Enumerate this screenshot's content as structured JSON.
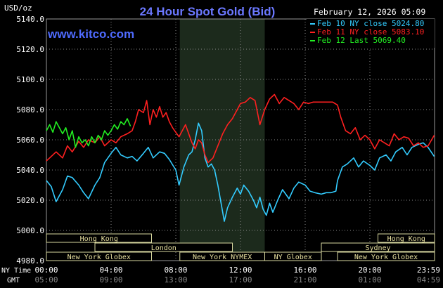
{
  "chart_data": {
    "type": "line",
    "title": "24 Hour Spot Gold (Bid)",
    "date_text": "February 12, 2026 05:09",
    "site": "www.kitco.com",
    "ylabel": "USD/oz",
    "ylim": [
      4980,
      5140
    ],
    "y_ticks": [
      "5140.0",
      "5120.0",
      "5100.0",
      "5080.0",
      "5060.0",
      "5040.0",
      "5020.0",
      "5000.0",
      "4980.0"
    ],
    "x_axis": {
      "row1_label": "NY Time",
      "row2_label": "GMT",
      "ny_ticks": [
        "00:00",
        "04:00",
        "08:00",
        "12:00",
        "16:00",
        "20:00",
        "23:59"
      ],
      "gmt_ticks": [
        "05:00",
        "09:00",
        "13:00",
        "17:00",
        "21:00",
        "01:00",
        "04:59"
      ]
    },
    "legend": [
      {
        "label": "Feb 10 NY close 5024.80",
        "color": "#33CCFF"
      },
      {
        "label": "Feb 11 NY close 5083.10",
        "color": "#FF2020"
      },
      {
        "label": "Feb 12 Last 5069.40",
        "color": "#22EE22"
      }
    ],
    "sessions": [
      {
        "label": "Hong Kong",
        "start": 0.0,
        "end": 6.5,
        "row": 0
      },
      {
        "label": "Hong Kong",
        "start": 20.5,
        "end": 24.0,
        "row": 0
      },
      {
        "label": "London",
        "start": 3.0,
        "end": 11.5,
        "row": 1
      },
      {
        "label": "Sydney",
        "start": 17.0,
        "end": 24.0,
        "row": 1
      },
      {
        "label": "New York Globex",
        "start": 0.0,
        "end": 6.5,
        "row": 2
      },
      {
        "label": "New York NYMEX",
        "start": 8.25,
        "end": 13.5,
        "row": 2
      },
      {
        "label": "NY Globex",
        "start": 13.5,
        "end": 17.0,
        "row": 2
      },
      {
        "label": "New York Globex",
        "start": 18.0,
        "end": 24.0,
        "row": 2
      }
    ],
    "shaded_region_hours": [
      8.25,
      13.5
    ],
    "series": [
      {
        "name": "Feb 10 NY close 5024.80",
        "color": "#33CCFF",
        "x": [
          0,
          0.3,
          0.6,
          1,
          1.3,
          1.6,
          2,
          2.3,
          2.6,
          3,
          3.3,
          3.6,
          4,
          4.3,
          4.6,
          5,
          5.3,
          5.6,
          6,
          6.3,
          6.6,
          7,
          7.3,
          7.6,
          8,
          8.2,
          8.5,
          8.8,
          9,
          9.2,
          9.4,
          9.6,
          9.8,
          10,
          10.2,
          10.4,
          10.6,
          10.8,
          11,
          11.2,
          11.5,
          11.8,
          12,
          12.2,
          12.5,
          12.8,
          13,
          13.2,
          13.4,
          13.6,
          13.8,
          14,
          14.3,
          14.6,
          15,
          15.3,
          15.6,
          16,
          16.3,
          16.6,
          17,
          17.3,
          17.6,
          17.9,
          18,
          18.3,
          18.6,
          19,
          19.3,
          19.6,
          20,
          20.3,
          20.6,
          21,
          21.3,
          21.6,
          22,
          22.3,
          22.6,
          23,
          23.3,
          23.6,
          23.98
        ],
        "y": [
          5033,
          5029,
          5019,
          5027,
          5036,
          5035,
          5030,
          5025,
          5021,
          5030,
          5035,
          5045,
          5051,
          5055,
          5050,
          5048,
          5049,
          5046,
          5051,
          5055,
          5048,
          5052,
          5051,
          5047,
          5040,
          5030,
          5042,
          5050,
          5052,
          5060,
          5071,
          5066,
          5048,
          5042,
          5044,
          5040,
          5030,
          5018,
          5006,
          5015,
          5022,
          5028,
          5024,
          5030,
          5026,
          5020,
          5015,
          5022,
          5014,
          5010,
          5018,
          5012,
          5020,
          5027,
          5021,
          5028,
          5032,
          5030,
          5026,
          5025,
          5024,
          5025,
          5025,
          5026,
          5033,
          5042,
          5044,
          5048,
          5042,
          5046,
          5043,
          5040,
          5048,
          5050,
          5046,
          5052,
          5055,
          5050,
          5055,
          5057,
          5058,
          5055,
          5049
        ]
      },
      {
        "name": "Feb 11 NY close 5083.10",
        "color": "#FF2020",
        "x": [
          0,
          0.3,
          0.6,
          1,
          1.3,
          1.6,
          2,
          2.3,
          2.6,
          3,
          3.3,
          3.6,
          4,
          4.3,
          4.6,
          5,
          5.3,
          5.5,
          5.7,
          6,
          6.2,
          6.4,
          6.6,
          6.8,
          7,
          7.2,
          7.4,
          7.6,
          7.8,
          8,
          8.2,
          8.4,
          8.6,
          8.8,
          9,
          9.2,
          9.4,
          9.6,
          9.8,
          10,
          10.3,
          10.6,
          10.9,
          11.2,
          11.5,
          11.8,
          12,
          12.3,
          12.6,
          12.9,
          13.2,
          13.5,
          13.8,
          14.1,
          14.4,
          14.7,
          15,
          15.3,
          15.6,
          15.9,
          16.2,
          16.5,
          16.8,
          17.1,
          17.4,
          17.7,
          18,
          18.2,
          18.5,
          18.8,
          19.1,
          19.4,
          19.7,
          20,
          20.3,
          20.6,
          20.9,
          21.2,
          21.5,
          21.8,
          22.1,
          22.4,
          22.7,
          23,
          23.3,
          23.6,
          23.98
        ],
        "y": [
          5046,
          5049,
          5052,
          5048,
          5056,
          5052,
          5059,
          5055,
          5060,
          5058,
          5062,
          5056,
          5060,
          5058,
          5062,
          5064,
          5066,
          5072,
          5080,
          5078,
          5086,
          5070,
          5080,
          5075,
          5082,
          5075,
          5078,
          5072,
          5068,
          5065,
          5062,
          5066,
          5070,
          5064,
          5058,
          5054,
          5060,
          5058,
          5050,
          5045,
          5048,
          5056,
          5064,
          5070,
          5074,
          5080,
          5084,
          5085,
          5088,
          5086,
          5070,
          5080,
          5087,
          5090,
          5084,
          5088,
          5086,
          5084,
          5080,
          5085,
          5084,
          5085,
          5085,
          5085,
          5085,
          5085,
          5083,
          5075,
          5066,
          5064,
          5068,
          5060,
          5063,
          5060,
          5054,
          5060,
          5058,
          5056,
          5064,
          5060,
          5062,
          5061,
          5056,
          5058,
          5055,
          5056,
          5063
        ]
      },
      {
        "name": "Feb 12 Last 5069.40",
        "color": "#22EE22",
        "x": [
          0,
          0.2,
          0.4,
          0.6,
          0.8,
          1,
          1.2,
          1.4,
          1.6,
          1.8,
          2,
          2.2,
          2.4,
          2.6,
          2.8,
          3,
          3.2,
          3.4,
          3.6,
          3.8,
          4,
          4.2,
          4.4,
          4.6,
          4.8,
          5,
          5.2
        ],
        "y": [
          5066,
          5070,
          5065,
          5072,
          5068,
          5064,
          5068,
          5060,
          5066,
          5055,
          5062,
          5058,
          5060,
          5056,
          5062,
          5058,
          5063,
          5060,
          5066,
          5063,
          5066,
          5070,
          5067,
          5072,
          5070,
          5074,
          5069
        ]
      }
    ]
  }
}
